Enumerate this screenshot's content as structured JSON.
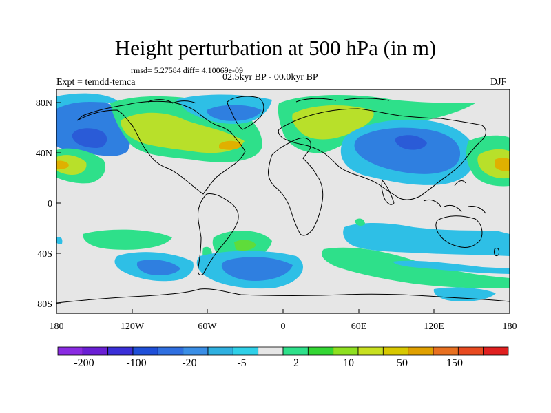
{
  "figure": {
    "title": "Height perturbation at 500 hPa (in m)",
    "stats": "rmsd= 5.27584  diff= 4.10069e-09",
    "experiment": "Expt = temdd-temca",
    "period": "02.5kyr BP - 00.0kyr BP",
    "season": "DJF"
  },
  "map": {
    "lat_labels": [
      "80N",
      "40N",
      "0",
      "40S",
      "80S"
    ],
    "lon_labels": [
      "180",
      "120W",
      "60W",
      "0",
      "60E",
      "120E",
      "180"
    ],
    "projection": "cylindrical equidistant",
    "land_outline": "coastlines"
  },
  "colorbar": {
    "labels": [
      "-200",
      "-100",
      "-20",
      "-5",
      "2",
      "10",
      "50",
      "150"
    ],
    "colors": [
      "#8a2be2",
      "#6a1fd4",
      "#3a2fd8",
      "#1f4fd8",
      "#2f6fe0",
      "#3a8ee6",
      "#2fb0e0",
      "#2fd0e8",
      "#e6e6e6",
      "#2ee08a",
      "#33d633",
      "#8ee020",
      "#c8e020",
      "#d8c800",
      "#e0a000",
      "#e87020",
      "#e84a20",
      "#e02020"
    ]
  },
  "palette": {
    "neutral": "#e6e6e6",
    "blue_dark": "#2a5bd7",
    "blue_mid": "#2f7fe0",
    "blue_light": "#2ebfe6",
    "green": "#2ee08a",
    "green_mid": "#5fdc3a",
    "yellow_green": "#b8e02a",
    "orange": "#e0b000"
  }
}
